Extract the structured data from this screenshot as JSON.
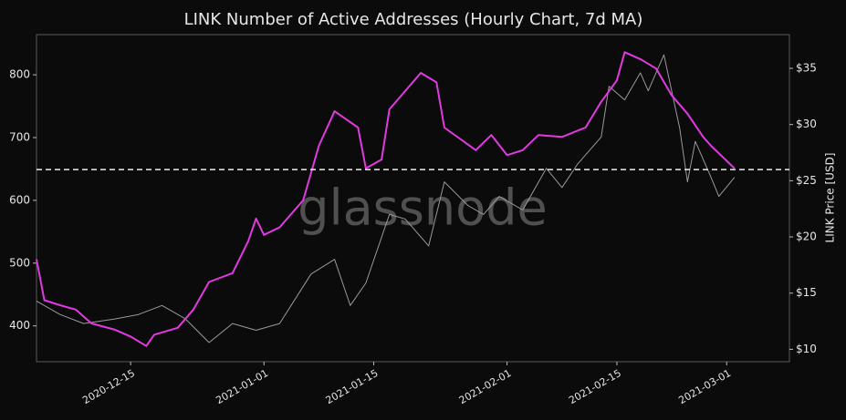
{
  "chart_data": {
    "type": "line",
    "title": "LINK Number of Active Addresses (Hourly Chart, 7d MA)",
    "y2label": "LINK Price [USD]",
    "watermark": "glassnode",
    "xlim": [
      "2020-12-03",
      "2021-03-09"
    ],
    "xticks": [
      "2020-12-15",
      "2021-01-01",
      "2021-01-15",
      "2021-02-01",
      "2021-02-15",
      "2021-03-01"
    ],
    "ylim": [
      343,
      864
    ],
    "yticks": [
      400,
      500,
      600,
      700,
      800
    ],
    "y2lim": [
      8.9,
      38.0
    ],
    "y2ticks": [
      {
        "value": 10,
        "label": "$10"
      },
      {
        "value": 15,
        "label": "$15"
      },
      {
        "value": 20,
        "label": "$20"
      },
      {
        "value": 25,
        "label": "$25"
      },
      {
        "value": 30,
        "label": "$30"
      },
      {
        "value": 35,
        "label": "$35"
      }
    ],
    "reference_line": 649,
    "grid": false,
    "series": [
      {
        "color": "#e03ae0",
        "axis": "y",
        "x": [
          "2020-12-03",
          "2020-12-04",
          "2020-12-06",
          "2020-12-08",
          "2020-12-10",
          "2020-12-13",
          "2020-12-15",
          "2020-12-17",
          "2020-12-18",
          "2020-12-21",
          "2020-12-23",
          "2020-12-25",
          "2020-12-28",
          "2020-12-30",
          "2020-12-31",
          "2021-01-01",
          "2021-01-03",
          "2021-01-06",
          "2021-01-08",
          "2021-01-10",
          "2021-01-13",
          "2021-01-14",
          "2021-01-16",
          "2021-01-17",
          "2021-01-19",
          "2021-01-21",
          "2021-01-23",
          "2021-01-24",
          "2021-01-28",
          "2021-01-30",
          "2021-02-01",
          "2021-02-03",
          "2021-02-05",
          "2021-02-08",
          "2021-02-11",
          "2021-02-13",
          "2021-02-15",
          "2021-02-16",
          "2021-02-18",
          "2021-02-20",
          "2021-02-22",
          "2021-02-24",
          "2021-02-26",
          "2021-02-27",
          "2021-03-02"
        ],
        "values": [
          506,
          441,
          433,
          426,
          404,
          394,
          383,
          368,
          386,
          397,
          426,
          470,
          484,
          535,
          571,
          545,
          557,
          600,
          687,
          742,
          716,
          651,
          665,
          745,
          774,
          803,
          788,
          716,
          680,
          704,
          672,
          680,
          704,
          701,
          716,
          757,
          791,
          836,
          825,
          810,
          767,
          738,
          701,
          687,
          651
        ]
      },
      {
        "color": "#9a9a9a",
        "axis": "y2",
        "x": [
          "2020-12-03",
          "2020-12-06",
          "2020-12-09",
          "2020-12-13",
          "2020-12-16",
          "2020-12-19",
          "2020-12-22",
          "2020-12-25",
          "2020-12-28",
          "2020-12-31",
          "2021-01-03",
          "2021-01-07",
          "2021-01-10",
          "2021-01-12",
          "2021-01-14",
          "2021-01-17",
          "2021-01-19",
          "2021-01-22",
          "2021-01-24",
          "2021-01-27",
          "2021-01-29",
          "2021-01-31",
          "2021-02-03",
          "2021-02-06",
          "2021-02-08",
          "2021-02-10",
          "2021-02-13",
          "2021-02-14",
          "2021-02-16",
          "2021-02-18",
          "2021-02-19",
          "2021-02-21",
          "2021-02-23",
          "2021-02-24",
          "2021-02-25",
          "2021-02-27",
          "2021-02-28",
          "2021-03-02"
        ],
        "values": [
          14.3,
          13.1,
          12.3,
          12.7,
          13.1,
          13.9,
          12.7,
          10.6,
          12.3,
          11.7,
          12.3,
          16.7,
          18.0,
          13.9,
          15.9,
          22.0,
          21.6,
          19.2,
          24.9,
          22.8,
          22.0,
          23.6,
          22.4,
          26.1,
          24.4,
          26.5,
          28.9,
          33.4,
          32.2,
          34.6,
          33.0,
          36.2,
          29.7,
          24.9,
          28.5,
          25.3,
          23.6,
          25.3
        ]
      }
    ]
  }
}
